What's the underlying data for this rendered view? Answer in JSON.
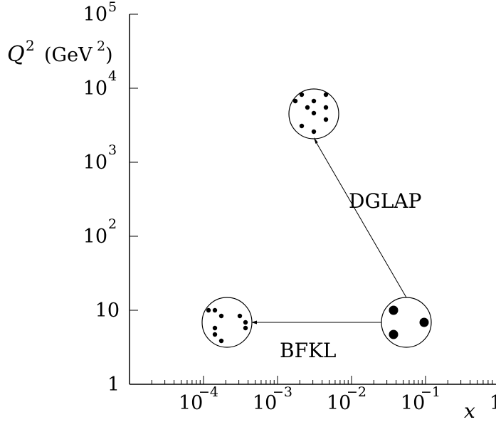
{
  "labels": {
    "y_axis": "Q",
    "y_axis_sup": "2",
    "y_axis_unit": "(GeV",
    "y_axis_unit_sup": "2",
    "y_axis_unit_close": ")",
    "x_axis": "x",
    "dglap": "DGLAP",
    "bfkl": "BFKL"
  },
  "y_ticks": [
    {
      "base": "1",
      "exp": ""
    },
    {
      "base": "10",
      "exp": ""
    },
    {
      "base": "10",
      "exp": "2"
    },
    {
      "base": "10",
      "exp": "3"
    },
    {
      "base": "10",
      "exp": "4"
    },
    {
      "base": "10",
      "exp": "5"
    }
  ],
  "x_ticks": [
    {
      "base": "10",
      "exp": "−4"
    },
    {
      "base": "10",
      "exp": "−3"
    },
    {
      "base": "10",
      "exp": "−2"
    },
    {
      "base": "10",
      "exp": "−1"
    },
    {
      "base": "1",
      "exp": ""
    }
  ],
  "regions": [
    {
      "name": "start",
      "x": 0.06,
      "q2": 6.9,
      "partons": "few-large"
    },
    {
      "name": "dglap-end",
      "x": 0.0033,
      "q2": 4600,
      "partons": "many-small"
    },
    {
      "name": "bfkl-end",
      "x": 0.00022,
      "q2": 6.9,
      "partons": "many-small"
    }
  ]
}
